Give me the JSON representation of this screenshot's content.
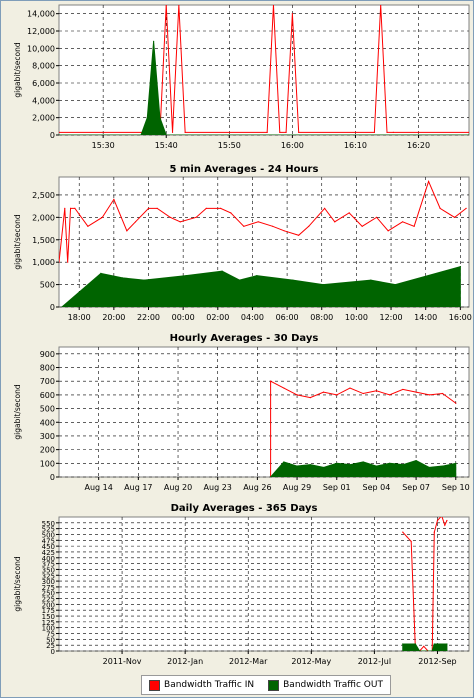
{
  "chart_data": [
    {
      "type": "line",
      "title": "",
      "ylabel": "gigabit/second",
      "xlabel": "",
      "ylim": [
        0,
        15000
      ],
      "yticks": [
        0,
        2000,
        4000,
        6000,
        8000,
        10000,
        12000,
        14000
      ],
      "ytick_labels": [
        "0",
        "2,000",
        "4,000",
        "6,000",
        "8,000",
        "10,000",
        "12,000",
        "14,000"
      ],
      "x_range": [
        "15:23",
        "16:28"
      ],
      "xticks": [
        "15:30",
        "15:40",
        "15:50",
        "16:00",
        "16:10",
        "16:20"
      ],
      "grid": true,
      "series": [
        {
          "name": "Bandwidth Traffic IN",
          "color": "#ff0000",
          "x": [
            "15:23",
            "15:39",
            "15:40",
            "15:41",
            "15:42",
            "15:43",
            "15:56",
            "15:57",
            "15:58",
            "15:59",
            "16:00",
            "16:01",
            "16:13",
            "16:14",
            "16:15",
            "16:16",
            "16:28"
          ],
          "values": [
            300,
            300,
            15000,
            300,
            15000,
            300,
            300,
            15000,
            300,
            300,
            14000,
            300,
            300,
            15000,
            300,
            300,
            300
          ]
        },
        {
          "name": "Bandwidth Traffic OUT",
          "color": "#006400",
          "x": [
            "15:23",
            "15:36",
            "15:37",
            "15:38",
            "15:39",
            "15:40",
            "16:28"
          ],
          "values": [
            0,
            0,
            2000,
            10800,
            2000,
            0,
            0
          ]
        }
      ]
    },
    {
      "type": "line",
      "title": "5 min Averages - 24 Hours",
      "ylabel": "gigabit/second",
      "xlabel": "",
      "ylim": [
        0,
        2900
      ],
      "yticks": [
        0,
        500,
        1000,
        1500,
        2000,
        2500
      ],
      "ytick_labels": [
        "0",
        "500",
        "1,000",
        "1,500",
        "2,000",
        "2,500"
      ],
      "x_range": [
        "16:50",
        "16:30"
      ],
      "xticks": [
        "18:00",
        "20:00",
        "22:00",
        "00:00",
        "02:00",
        "04:00",
        "06:00",
        "08:00",
        "10:00",
        "12:00",
        "14:00",
        "16:00"
      ],
      "grid": true,
      "series": [
        {
          "name": "Bandwidth Traffic IN",
          "color": "#ff0000",
          "x": [
            "16:50",
            "17:10",
            "17:20",
            "17:30",
            "17:45",
            "18:30",
            "19:20",
            "20:00",
            "20:45",
            "21:15",
            "22:00",
            "22:30",
            "23:15",
            "23:50",
            "00:45",
            "01:20",
            "02:10",
            "02:45",
            "03:30",
            "04:20",
            "05:10",
            "05:50",
            "06:40",
            "07:15",
            "08:10",
            "08:45",
            "09:35",
            "10:20",
            "11:10",
            "11:50",
            "12:40",
            "13:20",
            "14:10",
            "14:50",
            "15:40",
            "16:20"
          ],
          "values": [
            1000,
            2200,
            1000,
            2200,
            2200,
            1800,
            2000,
            2400,
            1700,
            1900,
            2200,
            2200,
            2000,
            1900,
            2000,
            2200,
            2200,
            2100,
            1800,
            1900,
            1800,
            1700,
            1600,
            1800,
            2200,
            1900,
            2100,
            1800,
            2000,
            1700,
            1900,
            1800,
            2800,
            2200,
            2000,
            2200
          ]
        },
        {
          "name": "Bandwidth Traffic OUT",
          "color": "#006400",
          "x": [
            "17:00",
            "19:15",
            "20:30",
            "21:45",
            "00:10",
            "02:15",
            "03:15",
            "04:15",
            "06:20",
            "08:05",
            "10:50",
            "12:15",
            "16:00"
          ],
          "values": [
            0,
            750,
            650,
            600,
            700,
            800,
            600,
            700,
            600,
            500,
            600,
            500,
            900
          ]
        }
      ]
    },
    {
      "type": "line",
      "title": "Hourly Averages - 30 Days",
      "ylabel": "gigabit/second",
      "xlabel": "",
      "ylim": [
        0,
        950
      ],
      "yticks": [
        0,
        100,
        200,
        300,
        400,
        500,
        600,
        700,
        800,
        900
      ],
      "ytick_labels": [
        "0",
        "100",
        "200",
        "300",
        "400",
        "500",
        "600",
        "700",
        "800",
        "900"
      ],
      "x_range": [
        "Aug 11",
        "Sep 11"
      ],
      "xticks": [
        "Aug 14",
        "Aug 17",
        "Aug 20",
        "Aug 23",
        "Aug 26",
        "Aug 29",
        "Sep 01",
        "Sep 04",
        "Sep 07",
        "Sep 10"
      ],
      "grid": true,
      "series": [
        {
          "name": "Bandwidth Traffic IN",
          "color": "#ff0000",
          "x": [
            "Aug 27",
            "Aug 27",
            "Aug 28",
            "Aug 29",
            "Aug 30",
            "Aug 31",
            "Sep 01",
            "Sep 02",
            "Sep 03",
            "Sep 04",
            "Sep 05",
            "Sep 06",
            "Sep 07",
            "Sep 08",
            "Sep 09",
            "Sep 10"
          ],
          "values": [
            0,
            700,
            650,
            600,
            580,
            620,
            600,
            650,
            610,
            630,
            600,
            640,
            620,
            600,
            610,
            540
          ]
        },
        {
          "name": "Bandwidth Traffic OUT",
          "color": "#006400",
          "x": [
            "Aug 27",
            "Aug 28",
            "Aug 29",
            "Aug 30",
            "Aug 31",
            "Sep 01",
            "Sep 02",
            "Sep 03",
            "Sep 04",
            "Sep 05",
            "Sep 06",
            "Sep 07",
            "Sep 08",
            "Sep 09",
            "Sep 10"
          ],
          "values": [
            0,
            110,
            80,
            90,
            70,
            100,
            90,
            110,
            80,
            100,
            90,
            120,
            70,
            80,
            100
          ]
        }
      ]
    },
    {
      "type": "line",
      "title": "Daily Averages - 365 Days",
      "ylabel": "gigabit/second",
      "xlabel": "",
      "ylim": [
        0,
        575
      ],
      "yticks": [
        0,
        25,
        50,
        75,
        100,
        125,
        150,
        175,
        200,
        225,
        250,
        275,
        300,
        325,
        350,
        375,
        400,
        425,
        450,
        475,
        500,
        525,
        550
      ],
      "ytick_labels": [
        "0",
        "25",
        "50",
        "75",
        "100",
        "125",
        "150",
        "175",
        "200",
        "225",
        "250",
        "275",
        "300",
        "325",
        "350",
        "375",
        "400",
        "425",
        "450",
        "475",
        "500",
        "525",
        "550"
      ],
      "x_range": [
        "2011-Sep",
        "2012-Oct"
      ],
      "xticks": [
        "2011-Nov",
        "2012-Jan",
        "2012-Mar",
        "2012-May",
        "2012-Jul",
        "2012-Sep"
      ],
      "grid": true,
      "series": [
        {
          "name": "Bandwidth Traffic IN",
          "color": "#ff0000",
          "x": [
            "2012-Jul-28",
            "2012-Aug-02",
            "2012-Aug-06",
            "2012-Aug-10",
            "2012-Aug-14",
            "2012-Aug-18",
            "2012-Aug-22",
            "2012-Aug-26",
            "2012-Aug-28",
            "2012-Sep-01",
            "2012-Sep-05",
            "2012-Sep-08",
            "2012-Sep-10"
          ],
          "values": [
            510,
            490,
            470,
            10,
            0,
            20,
            0,
            0,
            510,
            560,
            580,
            540,
            560
          ]
        },
        {
          "name": "Bandwidth Traffic OUT",
          "color": "#006400",
          "x": [
            "2012-Jul-28",
            "2012-Aug-10",
            "2012-Aug-14",
            "2012-Aug-26",
            "2012-Aug-28",
            "2012-Sep-10"
          ],
          "values": [
            30,
            30,
            0,
            0,
            30,
            30
          ]
        }
      ]
    }
  ],
  "legend": {
    "in_label": "Bandwidth Traffic IN",
    "in_color": "#ff0000",
    "out_label": "Bandwidth Traffic OUT",
    "out_color": "#006400"
  }
}
